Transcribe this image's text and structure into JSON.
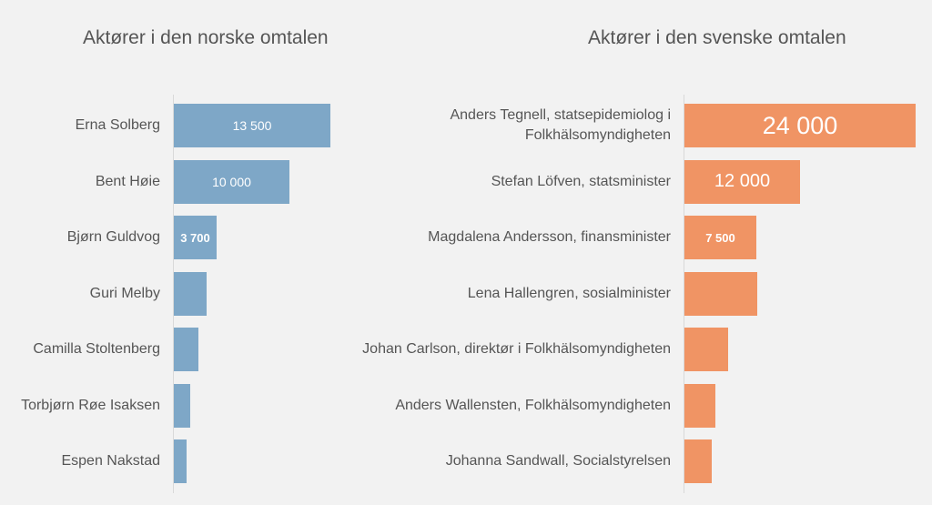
{
  "chart_data": [
    {
      "type": "bar",
      "orientation": "horizontal",
      "title": "Aktører i den norske omtalen",
      "color": "#7ea7c7",
      "max": 13500,
      "categories": [
        "Erna Solberg",
        "Bent Høie",
        "Bjørn Guldvog",
        "Guri Melby",
        "Camilla Stoltenberg",
        "Torbjørn Røe Isaksen",
        "Espen Nakstad"
      ],
      "values": [
        13500,
        10000,
        3700,
        2800,
        2100,
        1400,
        1100
      ],
      "data_labels": [
        "13 500",
        "10 000",
        "3 700",
        "",
        "",
        "",
        ""
      ]
    },
    {
      "type": "bar",
      "orientation": "horizontal",
      "title": "Aktører i den svenske omtalen",
      "color": "#f09464",
      "max": 24000,
      "categories": [
        "Anders Tegnell, statsepidemiolog i Folkhälsomyndigheten",
        "Stefan Löfven, statsminister",
        "Magdalena Andersson, finansminister",
        "Lena Hallengren, sosialminister",
        "Johan Carlson, direktør i Folkhälsomyndigheten",
        "Anders Wallensten, Folkhälsomyndigheten",
        "Johanna Sandwall, Socialstyrelsen"
      ],
      "values": [
        24000,
        12000,
        7500,
        7600,
        4500,
        3200,
        2800
      ],
      "data_labels": [
        "24 000",
        "12 000",
        "7 500",
        "",
        "",
        "",
        ""
      ]
    }
  ]
}
